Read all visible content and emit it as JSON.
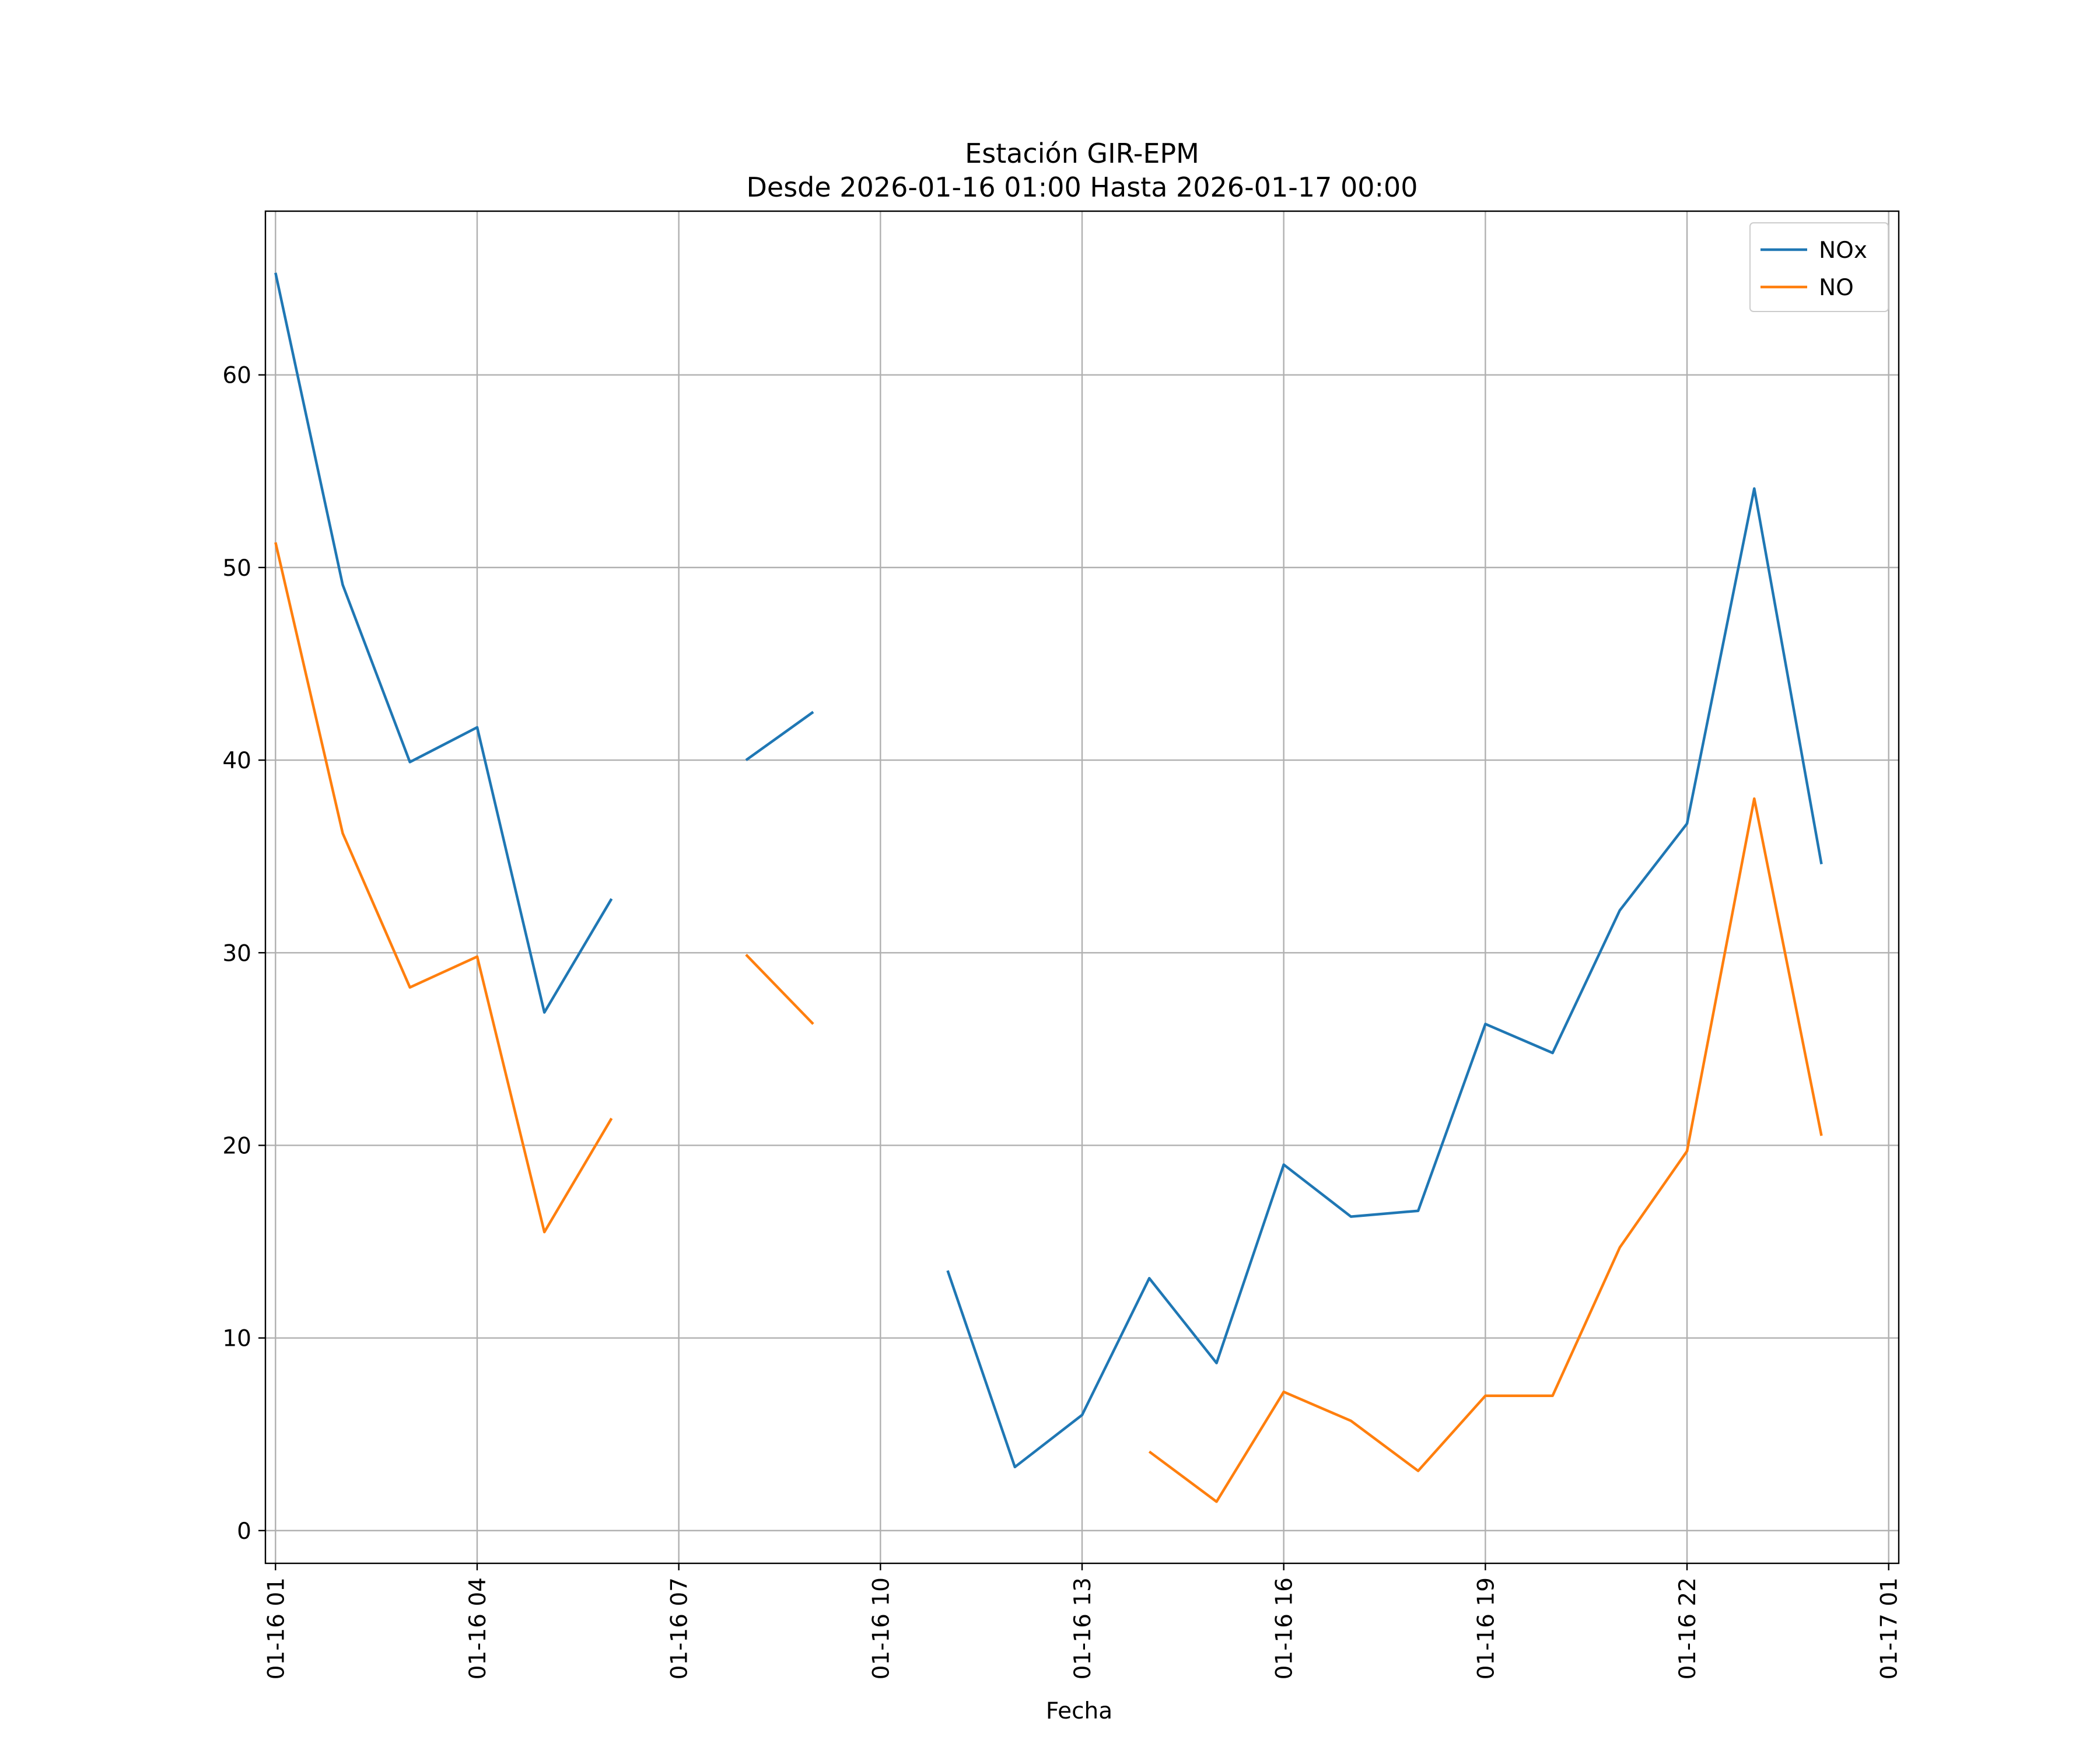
{
  "chart_data": {
    "type": "line",
    "title": "Estación GIR-EPM",
    "subtitle": "Desde 2026-01-16 01:00 Hasta 2026-01-17 00:00",
    "xlabel": "Fecha",
    "ylabel": "",
    "x": [
      "2026-01-16 01:00",
      "2026-01-16 02:00",
      "2026-01-16 03:00",
      "2026-01-16 04:00",
      "2026-01-16 05:00",
      "2026-01-16 06:00",
      "2026-01-16 07:00",
      "2026-01-16 08:00",
      "2026-01-16 09:00",
      "2026-01-16 10:00",
      "2026-01-16 11:00",
      "2026-01-16 12:00",
      "2026-01-16 13:00",
      "2026-01-16 14:00",
      "2026-01-16 15:00",
      "2026-01-16 16:00",
      "2026-01-16 17:00",
      "2026-01-16 18:00",
      "2026-01-16 19:00",
      "2026-01-16 20:00",
      "2026-01-16 21:00",
      "2026-01-16 22:00",
      "2026-01-16 23:00",
      "2026-01-17 00:00"
    ],
    "xlim": [
      "2026-01-16 00:51",
      "2026-01-17 01:09"
    ],
    "ylim": [
      -1.7,
      68.5
    ],
    "xticks": [
      "2026-01-16 01:00",
      "2026-01-16 04:00",
      "2026-01-16 07:00",
      "2026-01-16 10:00",
      "2026-01-16 13:00",
      "2026-01-16 16:00",
      "2026-01-16 19:00",
      "2026-01-16 22:00",
      "2026-01-17 01:00"
    ],
    "xtick_labels": [
      "01-16 01",
      "01-16 04",
      "01-16 07",
      "01-16 10",
      "01-16 13",
      "01-16 16",
      "01-16 19",
      "01-16 22",
      "01-17 01"
    ],
    "yticks": [
      0,
      10,
      20,
      30,
      40,
      50,
      60
    ],
    "ytick_labels": [
      "0",
      "10",
      "20",
      "30",
      "40",
      "50",
      "60"
    ],
    "grid": true,
    "legend_position": "top-right",
    "series": [
      {
        "name": "NOx",
        "color": "#1f77b4",
        "values": [
          65.3,
          49.1,
          39.9,
          41.7,
          26.9,
          32.8,
          null,
          40.0,
          42.5,
          null,
          13.5,
          3.3,
          6.0,
          13.1,
          8.7,
          19.0,
          16.3,
          16.6,
          26.3,
          24.8,
          32.2,
          36.7,
          54.1,
          34.6
        ]
      },
      {
        "name": "NO",
        "color": "#ff7f0e",
        "values": [
          51.3,
          36.2,
          28.2,
          29.8,
          15.5,
          21.4,
          null,
          29.9,
          26.3,
          null,
          null,
          null,
          null,
          4.1,
          1.5,
          7.2,
          5.7,
          3.1,
          7.0,
          7.0,
          14.7,
          19.7,
          38.0,
          20.5
        ]
      }
    ]
  }
}
